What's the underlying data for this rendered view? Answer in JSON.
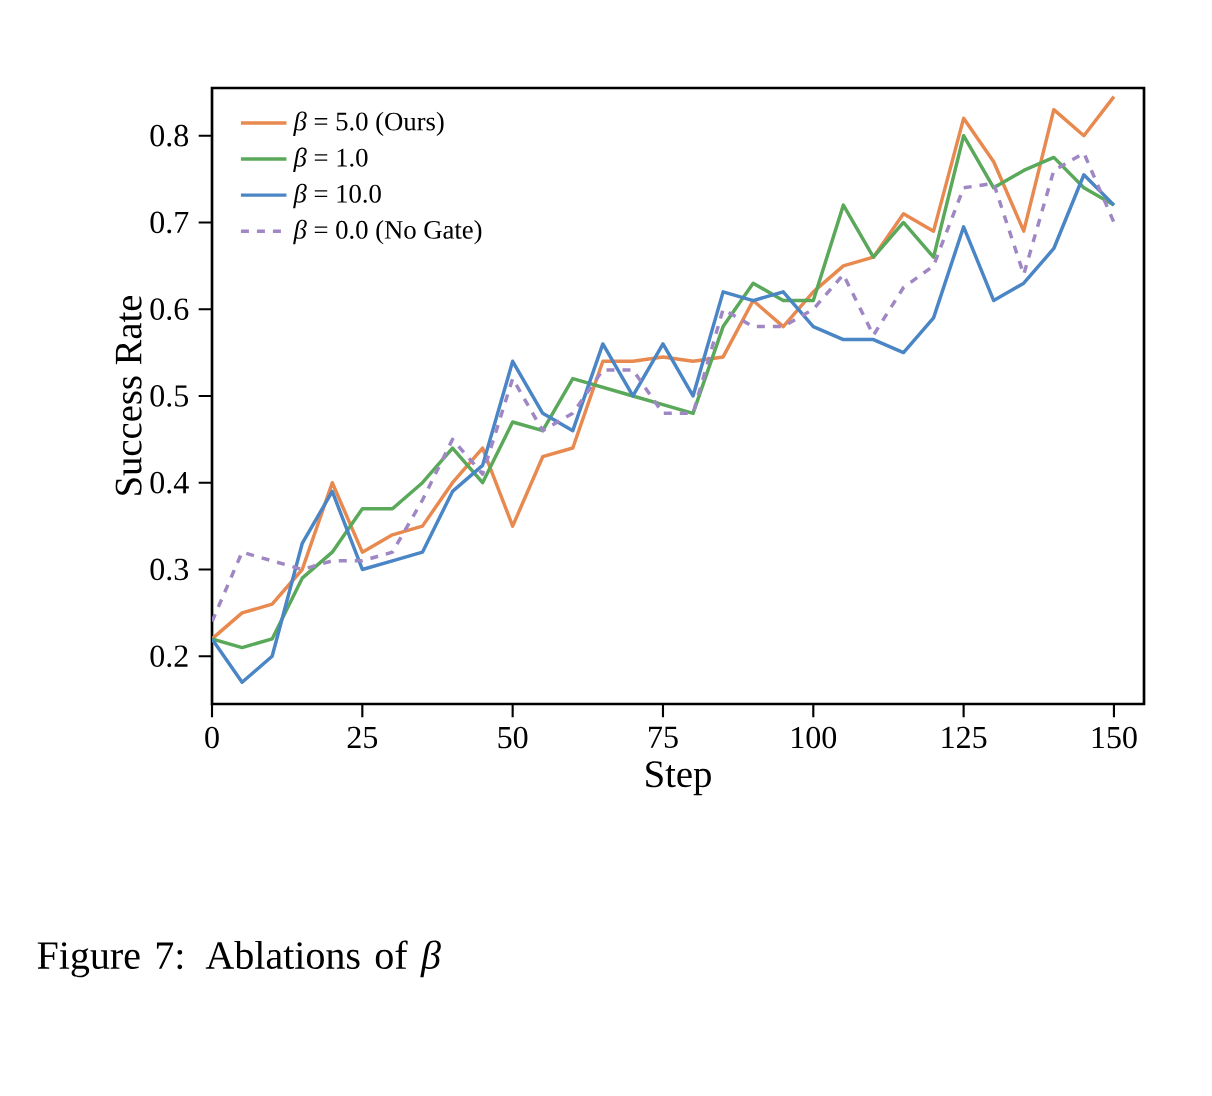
{
  "chart_data": {
    "type": "line",
    "xlabel": "Step",
    "ylabel": "Success Rate",
    "x": [
      0,
      5,
      10,
      15,
      20,
      25,
      30,
      35,
      40,
      45,
      50,
      55,
      60,
      65,
      70,
      75,
      80,
      85,
      90,
      95,
      100,
      105,
      110,
      115,
      120,
      125,
      130,
      135,
      140,
      145,
      150
    ],
    "series": [
      {
        "name": "*β* = 5.0 (Ours)",
        "color": "#e8894f",
        "line_style": "solid",
        "values": [
          0.22,
          0.25,
          0.26,
          0.3,
          0.4,
          0.32,
          0.34,
          0.35,
          0.4,
          0.44,
          0.35,
          0.43,
          0.44,
          0.54,
          0.54,
          0.545,
          0.54,
          0.545,
          0.61,
          0.58,
          0.62,
          0.65,
          0.66,
          0.71,
          0.69,
          0.82,
          0.77,
          0.69,
          0.83,
          0.8,
          0.845
        ]
      },
      {
        "name": "*β* = 1.0",
        "color": "#5aa85a",
        "line_style": "solid",
        "values": [
          0.22,
          0.21,
          0.22,
          0.29,
          0.32,
          0.37,
          0.37,
          0.4,
          0.44,
          0.4,
          0.47,
          0.46,
          0.52,
          0.51,
          0.5,
          0.49,
          0.48,
          0.58,
          0.63,
          0.61,
          0.61,
          0.72,
          0.66,
          0.7,
          0.66,
          0.8,
          0.74,
          0.76,
          0.775,
          0.74,
          0.72
        ]
      },
      {
        "name": "*β* = 10.0",
        "color": "#4a86c5",
        "line_style": "solid",
        "values": [
          0.22,
          0.17,
          0.2,
          0.33,
          0.39,
          0.3,
          0.31,
          0.32,
          0.39,
          0.42,
          0.54,
          0.48,
          0.46,
          0.56,
          0.5,
          0.56,
          0.5,
          0.62,
          0.61,
          0.62,
          0.58,
          0.565,
          0.565,
          0.55,
          0.59,
          0.695,
          0.61,
          0.63,
          0.67,
          0.755,
          0.72
        ]
      },
      {
        "name": "*β* = 0.0 (No Gate)",
        "color": "#9f87c4",
        "line_style": "dashed",
        "values": [
          0.24,
          0.32,
          0.31,
          0.3,
          0.31,
          0.31,
          0.32,
          0.38,
          0.45,
          0.41,
          0.52,
          0.46,
          0.48,
          0.53,
          0.53,
          0.48,
          0.48,
          0.6,
          0.58,
          0.58,
          0.6,
          0.64,
          0.57,
          0.625,
          0.65,
          0.74,
          0.745,
          0.64,
          0.76,
          0.78,
          0.7
        ]
      }
    ],
    "xlim": [
      0,
      155
    ],
    "ylim": [
      0.145,
      0.855
    ],
    "xticks": [
      0,
      25,
      50,
      75,
      100,
      125,
      150
    ],
    "yticks": [
      0.2,
      0.3,
      0.4,
      0.5,
      0.6,
      0.7,
      0.8
    ],
    "legend": "top left",
    "grid": false,
    "marker": "none",
    "annotations": [
      "Figure 7: Ablations of *β*"
    ]
  }
}
